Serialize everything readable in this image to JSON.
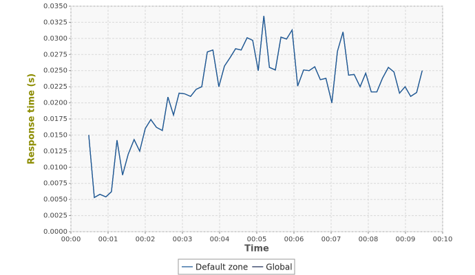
{
  "chart_data": {
    "type": "line",
    "xlabel": "Time",
    "ylabel": "Response time (s)",
    "x": [
      0.48,
      0.63,
      0.78,
      0.94,
      1.09,
      1.24,
      1.39,
      1.54,
      1.7,
      1.85,
      2.0,
      2.15,
      2.3,
      2.46,
      2.61,
      2.76,
      2.91,
      3.06,
      3.22,
      3.37,
      3.52,
      3.67,
      3.82,
      3.98,
      4.13,
      4.28,
      4.43,
      4.58,
      4.74,
      4.89,
      5.04,
      5.19,
      5.34,
      5.5,
      5.65,
      5.8,
      5.95,
      6.1,
      6.26,
      6.41,
      6.56,
      6.71,
      6.86,
      7.02,
      7.17,
      7.32,
      7.47,
      7.62,
      7.78,
      7.93,
      8.08,
      8.23,
      8.38,
      8.54,
      8.69,
      8.84,
      8.99,
      9.14,
      9.3,
      9.45
    ],
    "series": [
      {
        "name": "Default zone",
        "color": "#1f5c99",
        "values": [
          0.015,
          0.0053,
          0.0058,
          0.0054,
          0.0062,
          0.0142,
          0.0088,
          0.012,
          0.0143,
          0.0125,
          0.016,
          0.0174,
          0.0162,
          0.0157,
          0.0209,
          0.0181,
          0.0215,
          0.0214,
          0.021,
          0.0221,
          0.0225,
          0.0279,
          0.0282,
          0.0225,
          0.0257,
          0.027,
          0.0284,
          0.0282,
          0.0301,
          0.0297,
          0.025,
          0.0335,
          0.0255,
          0.0251,
          0.0302,
          0.0299,
          0.0313,
          0.0226,
          0.0251,
          0.025,
          0.0256,
          0.0236,
          0.0238,
          0.02,
          0.028,
          0.031,
          0.0243,
          0.0244,
          0.0225,
          0.0246,
          0.0217,
          0.0217,
          0.0238,
          0.0255,
          0.0248,
          0.0215,
          0.0225,
          0.021,
          0.0216,
          0.025
        ]
      },
      {
        "name": "Global",
        "color": "#1a2a55",
        "values": [
          0.015,
          0.0053,
          0.0058,
          0.0054,
          0.0062,
          0.0142,
          0.0088,
          0.012,
          0.0143,
          0.0125,
          0.016,
          0.0174,
          0.0162,
          0.0157,
          0.0209,
          0.0181,
          0.0215,
          0.0214,
          0.021,
          0.0221,
          0.0225,
          0.0279,
          0.0282,
          0.0225,
          0.0257,
          0.027,
          0.0284,
          0.0282,
          0.0301,
          0.0297,
          0.025,
          0.0335,
          0.0255,
          0.0251,
          0.0302,
          0.0299,
          0.0313,
          0.0226,
          0.0251,
          0.025,
          0.0256,
          0.0236,
          0.0238,
          0.02,
          0.028,
          0.031,
          0.0243,
          0.0244,
          0.0225,
          0.0246,
          0.0217,
          0.0217,
          0.0238,
          0.0255,
          0.0248,
          0.0215,
          0.0225,
          0.021,
          0.0216,
          0.025
        ]
      }
    ],
    "xlim": [
      0,
      10
    ],
    "xticks": [
      {
        "value": 0,
        "label": "00:00"
      },
      {
        "value": 1,
        "label": "00:01"
      },
      {
        "value": 2,
        "label": "00:02"
      },
      {
        "value": 3,
        "label": "00:03"
      },
      {
        "value": 4,
        "label": "00:04"
      },
      {
        "value": 5,
        "label": "00:05"
      },
      {
        "value": 6,
        "label": "00:06"
      },
      {
        "value": 7,
        "label": "00:07"
      },
      {
        "value": 8,
        "label": "00:08"
      },
      {
        "value": 9,
        "label": "00:09"
      },
      {
        "value": 10,
        "label": "00:10"
      }
    ],
    "ylim": [
      0,
      0.035
    ],
    "yticks": [
      {
        "value": 0,
        "label": "0.0000"
      },
      {
        "value": 0.0025,
        "label": "0.0025"
      },
      {
        "value": 0.005,
        "label": "0.0050"
      },
      {
        "value": 0.0075,
        "label": "0.0075"
      },
      {
        "value": 0.01,
        "label": "0.0100"
      },
      {
        "value": 0.0125,
        "label": "0.0125"
      },
      {
        "value": 0.015,
        "label": "0.0150"
      },
      {
        "value": 0.0175,
        "label": "0.0175"
      },
      {
        "value": 0.02,
        "label": "0.0200"
      },
      {
        "value": 0.0225,
        "label": "0.0225"
      },
      {
        "value": 0.025,
        "label": "0.0250"
      },
      {
        "value": 0.0275,
        "label": "0.0275"
      },
      {
        "value": 0.03,
        "label": "0.0300"
      },
      {
        "value": 0.0325,
        "label": "0.0325"
      },
      {
        "value": 0.035,
        "label": "0.0350"
      }
    ],
    "grid": true
  }
}
